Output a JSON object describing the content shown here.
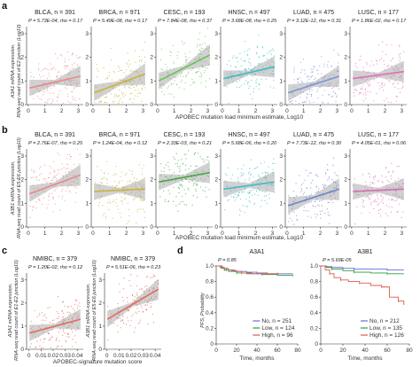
{
  "panel_labels": {
    "a": "a",
    "b": "b",
    "c": "c",
    "d": "d"
  },
  "row_a": {
    "ylabel_line1": "A3A1 mRNA expression,",
    "ylabel_line2": "RNA-seq read count of E2 junction (Log10)",
    "xlabel": "APOBEC mutation load minimum estimate, Log10"
  },
  "row_b": {
    "ylabel_line1": "A3B1 mRNA expression,",
    "ylabel_line2": "RNA-seq read count of E5-E6 junction (Log10)",
    "xlabel": "APOBEC mutation load minimum estimate, Log10"
  },
  "row_c": {
    "ylabel_left_1": "A3A1 mRNA expression,",
    "ylabel_left_2": "RNA-seq read count of E1-E2 junction (Log10)",
    "ylabel_right_1": "A3B1 mRNA expression,",
    "ylabel_right_2": "RNA-seq read count of E5-E6 junction (Log10)",
    "xlabel": "APOBEC-signature mutation score"
  },
  "row_d": {
    "ylabel": "PFS, Probability",
    "xlabel": "Time, months"
  },
  "chart_data": [
    {
      "id": "a-BLCA",
      "type": "scatter",
      "title": "BLCA, n = 391",
      "stat": "P = 5.73E-04, rho = 0.17",
      "color": "#e8888a",
      "fit": [
        0.7,
        1.2
      ],
      "xticks": [
        "0",
        "1",
        "2",
        "3"
      ],
      "yticks": [
        "0",
        "1",
        "2",
        "3"
      ],
      "ylim": [
        0,
        3.3
      ],
      "xlim": [
        -0.1,
        3.3
      ]
    },
    {
      "id": "a-BRCA",
      "type": "scatter",
      "title": "BRCA, n = 971",
      "stat": "P = 5.49E-08, rho = 0.17",
      "color": "#c9b23a",
      "fit": [
        0.5,
        1.3
      ],
      "xticks": [
        "0",
        "1",
        "2",
        "3"
      ],
      "yticks": [
        "0",
        "1",
        "2",
        "3"
      ],
      "ylim": [
        0,
        3.3
      ],
      "xlim": [
        -0.1,
        3.3
      ]
    },
    {
      "id": "a-CESC",
      "type": "scatter",
      "title": "CESC, n = 193",
      "stat": "P = 7.84E-08, rho = 0.37",
      "color": "#6cc25b",
      "fit": [
        1.0,
        2.1
      ],
      "xticks": [
        "0",
        "1",
        "2",
        "3"
      ],
      "yticks": [
        "0",
        "1",
        "2",
        "3"
      ],
      "ylim": [
        0,
        3.3
      ],
      "xlim": [
        -0.1,
        3.3
      ]
    },
    {
      "id": "a-HNSC",
      "type": "scatter",
      "title": "HNSC, n = 497",
      "stat": "P = 3.68E-08, rho = 0.25",
      "color": "#3fbcc5",
      "fit": [
        1.1,
        1.6
      ],
      "xticks": [
        "0",
        "1",
        "2",
        "3"
      ],
      "yticks": [
        "0",
        "1",
        "2",
        "3"
      ],
      "ylim": [
        0,
        3.3
      ],
      "xlim": [
        -0.1,
        3.3
      ]
    },
    {
      "id": "a-LUAD",
      "type": "scatter",
      "title": "LUAD, n = 475",
      "stat": "P = 3.12E-12, rho = 0.31",
      "color": "#7c95d8",
      "fit": [
        0.5,
        1.2
      ],
      "xticks": [
        "0",
        "1",
        "2",
        "3"
      ],
      "yticks": [
        "0",
        "1",
        "2",
        "3"
      ],
      "ylim": [
        0,
        3.3
      ],
      "xlim": [
        -0.1,
        3.3
      ]
    },
    {
      "id": "a-LUSC",
      "type": "scatter",
      "title": "LUSC, n = 177",
      "stat": "P = 1.86E-02, rho = 0.17",
      "color": "#e070b8",
      "fit": [
        1.1,
        1.4
      ],
      "xticks": [
        "0",
        "1",
        "2",
        "3"
      ],
      "yticks": [
        "0",
        "1",
        "2",
        "3"
      ],
      "ylim": [
        0,
        3.3
      ],
      "xlim": [
        -0.1,
        3.3
      ]
    },
    {
      "id": "b-BLCA",
      "type": "scatter",
      "title": "BLCA, n = 391",
      "stat": "P = 2.76E-07, rho = 0.25",
      "color": "#e8888a",
      "fit": [
        1.4,
        2.2
      ],
      "xticks": [
        "0",
        "1",
        "2",
        "3"
      ],
      "yticks": [
        "0",
        "1",
        "2",
        "3"
      ],
      "ylim": [
        0,
        3.3
      ],
      "xlim": [
        -0.1,
        3.3
      ]
    },
    {
      "id": "b-BRCA",
      "type": "scatter",
      "title": "BRCA, n = 971",
      "stat": "P = 1.24E-04, rho = 0.12",
      "color": "#c9b23a",
      "fit": [
        1.5,
        1.6
      ],
      "xticks": [
        "0",
        "1",
        "2",
        "3"
      ],
      "yticks": [
        "0",
        "1",
        "2",
        "3"
      ],
      "ylim": [
        0,
        3.3
      ],
      "xlim": [
        -0.1,
        3.3
      ]
    },
    {
      "id": "b-CESC",
      "type": "scatter",
      "title": "CESC, n = 193",
      "stat": "P = 2.33E-03, rho = 0.21",
      "color": "#4aa64a",
      "fit": [
        1.9,
        2.3
      ],
      "xticks": [
        "0",
        "1",
        "2",
        "3"
      ],
      "yticks": [
        "0",
        "1",
        "2",
        "3"
      ],
      "ylim": [
        0,
        3.3
      ],
      "xlim": [
        -0.1,
        3.3
      ]
    },
    {
      "id": "b-HNSC",
      "type": "scatter",
      "title": "HNSC, n = 497",
      "stat": "P = 5.68E-06, rho = 0.20",
      "color": "#3fbcc5",
      "fit": [
        1.6,
        1.9
      ],
      "xticks": [
        "0",
        "1",
        "2",
        "3"
      ],
      "yticks": [
        "0",
        "1",
        "2",
        "3"
      ],
      "ylim": [
        0,
        3.3
      ],
      "xlim": [
        -0.1,
        3.3
      ]
    },
    {
      "id": "b-LUAD",
      "type": "scatter",
      "title": "LUAD, n = 475",
      "stat": "P = 7.73E-12, rho = 0.30",
      "color": "#6d85cc",
      "fit": [
        0.9,
        1.6
      ],
      "xticks": [
        "0",
        "1",
        "2",
        "3"
      ],
      "yticks": [
        "0",
        "1",
        "2",
        "3"
      ],
      "ylim": [
        0,
        3.3
      ],
      "xlim": [
        -0.1,
        3.3
      ]
    },
    {
      "id": "b-LUSC",
      "type": "scatter",
      "title": "LUSC, n = 177",
      "stat": "P = 4.05E-01, rho = 0.06",
      "color": "#d46ab0",
      "fit": [
        1.5,
        1.6
      ],
      "xticks": [
        "0",
        "1",
        "2",
        "3"
      ],
      "yticks": [
        "0",
        "1",
        "2",
        "3"
      ],
      "ylim": [
        0,
        3.3
      ],
      "xlim": [
        -0.1,
        3.3
      ]
    },
    {
      "id": "c-A3A1",
      "type": "scatter",
      "title": "NMIBC, n = 379",
      "stat": "P = 1.20E-02, rho = 0.12",
      "color": "#e06a5e",
      "fit": [
        0.7,
        1.3
      ],
      "xticks": [
        "0",
        "0.01",
        "0.02",
        "0.03",
        "0.04"
      ],
      "yticks": [
        "0",
        "1",
        "2",
        "3"
      ],
      "ylim": [
        0,
        3.3
      ],
      "xlim": [
        -0.002,
        0.045
      ]
    },
    {
      "id": "c-A3B1",
      "type": "scatter",
      "title": "NMIBC, n = 379",
      "stat": "P = 5.51E-06, rho = 0.23",
      "color": "#e06a5e",
      "fit": [
        1.3,
        2.6
      ],
      "xticks": [
        "0",
        "0.01",
        "0.02",
        "0.03",
        "0.04"
      ],
      "yticks": [
        "0",
        "1",
        "2",
        "3"
      ],
      "ylim": [
        0,
        3.3
      ],
      "xlim": [
        -0.002,
        0.045
      ]
    },
    {
      "id": "d-A3A1",
      "type": "line",
      "title": "A3A1",
      "stat": "P = 0.85",
      "xticks": [
        "0",
        "20",
        "40",
        "60",
        "80"
      ],
      "yticks": [
        "0",
        "0.2",
        "0.4",
        "0.6",
        "0.8",
        "1.0"
      ],
      "xlim": [
        0,
        80
      ],
      "ylim": [
        0,
        1.0
      ],
      "series": [
        {
          "name": "No, n = 251",
          "color": "#6b6bd8",
          "points": [
            [
              0,
              1
            ],
            [
              5,
              0.97
            ],
            [
              10,
              0.95
            ],
            [
              15,
              0.94
            ],
            [
              20,
              0.93
            ],
            [
              30,
              0.92
            ],
            [
              40,
              0.91
            ],
            [
              50,
              0.9
            ],
            [
              60,
              0.9
            ],
            [
              75,
              0.9
            ]
          ]
        },
        {
          "name": "Low, n = 124",
          "color": "#2e9e3c",
          "points": [
            [
              0,
              1
            ],
            [
              4,
              0.98
            ],
            [
              8,
              0.95
            ],
            [
              12,
              0.93
            ],
            [
              20,
              0.91
            ],
            [
              30,
              0.9
            ],
            [
              45,
              0.89
            ],
            [
              60,
              0.88
            ],
            [
              75,
              0.88
            ]
          ]
        },
        {
          "name": "High, n = 96",
          "color": "#e0584e",
          "points": [
            [
              0,
              1
            ],
            [
              6,
              0.97
            ],
            [
              12,
              0.95
            ],
            [
              18,
              0.93
            ],
            [
              25,
              0.91
            ],
            [
              35,
              0.9
            ],
            [
              50,
              0.9
            ],
            [
              62,
              0.9
            ]
          ]
        }
      ]
    },
    {
      "id": "d-A3B1",
      "type": "line",
      "title": "A3B1",
      "stat": "P = 5.69E-05",
      "xticks": [
        "0",
        "20",
        "40",
        "60",
        "80"
      ],
      "yticks": [
        "0",
        "0.2",
        "0.4",
        "0.6",
        "0.8",
        "1.0"
      ],
      "xlim": [
        0,
        80
      ],
      "ylim": [
        0,
        1.0
      ],
      "series": [
        {
          "name": "No, n = 212",
          "color": "#6b6bd8",
          "points": [
            [
              0,
              1
            ],
            [
              5,
              0.99
            ],
            [
              10,
              0.98
            ],
            [
              20,
              0.97
            ],
            [
              30,
              0.96
            ],
            [
              45,
              0.96
            ],
            [
              60,
              0.95
            ],
            [
              75,
              0.95
            ]
          ]
        },
        {
          "name": "Low, n = 135",
          "color": "#2e9e3c",
          "points": [
            [
              0,
              1
            ],
            [
              5,
              0.98
            ],
            [
              10,
              0.96
            ],
            [
              20,
              0.94
            ],
            [
              30,
              0.92
            ],
            [
              45,
              0.91
            ],
            [
              60,
              0.9
            ],
            [
              75,
              0.9
            ]
          ]
        },
        {
          "name": "High, n = 126",
          "color": "#e0584e",
          "points": [
            [
              0,
              1
            ],
            [
              4,
              0.95
            ],
            [
              8,
              0.9
            ],
            [
              12,
              0.85
            ],
            [
              18,
              0.82
            ],
            [
              25,
              0.8
            ],
            [
              35,
              0.78
            ],
            [
              45,
              0.75
            ],
            [
              55,
              0.73
            ],
            [
              62,
              0.6
            ],
            [
              70,
              0.55
            ],
            [
              75,
              0.5
            ]
          ]
        }
      ]
    }
  ]
}
